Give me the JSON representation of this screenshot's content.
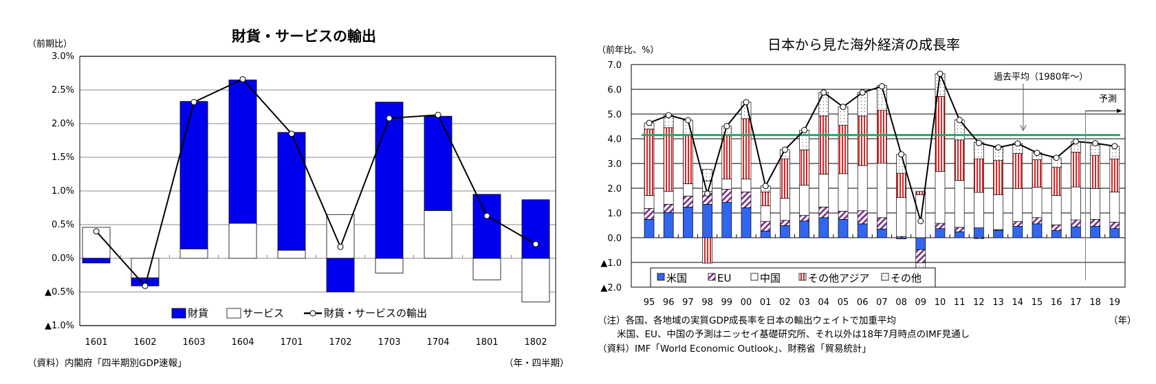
{
  "chart_data": [
    {
      "type": "bar",
      "stacked": true,
      "title": "財貨・サービスの輸出",
      "ylabel": "（前期比）",
      "xlabel": "（年・四半期）",
      "source": "（資料）内閣府「四半期別GDP速報」",
      "ylim": [
        -1.0,
        3.0
      ],
      "yticks": [
        3.0,
        2.5,
        2.0,
        1.5,
        1.0,
        0.5,
        0.0,
        -0.5,
        -1.0
      ],
      "ytick_labels": [
        "3.0%",
        "2.5%",
        "2.0%",
        "1.5%",
        "1.0%",
        "0.5%",
        "0.0%",
        "▲0.5%",
        "▲1.0%"
      ],
      "grid": true,
      "legend_position": "bottom-inside",
      "categories": [
        "1601",
        "1602",
        "1603",
        "1604",
        "1701",
        "1702",
        "1703",
        "1704",
        "1801",
        "1802"
      ],
      "series": [
        {
          "name": "財貨",
          "kind": "bar",
          "color": "#0000ee",
          "values": [
            -0.07,
            -0.12,
            2.19,
            2.13,
            1.75,
            -0.5,
            2.32,
            1.4,
            0.95,
            0.87
          ]
        },
        {
          "name": "サービス",
          "kind": "bar",
          "color": "#ffffff",
          "values": [
            0.46,
            -0.29,
            0.14,
            0.52,
            0.12,
            0.65,
            -0.22,
            0.71,
            -0.32,
            -0.65
          ]
        },
        {
          "name": "財貨・サービスの輸出",
          "kind": "line",
          "color": "#000000",
          "values": [
            0.4,
            -0.41,
            2.32,
            2.66,
            1.85,
            0.17,
            2.08,
            2.13,
            0.63,
            0.21
          ]
        }
      ]
    },
    {
      "type": "bar",
      "stacked": true,
      "title": "日本から見た海外経済の成長率",
      "ylabel": "（前年比、%）",
      "xlabel": "（年）",
      "ylim": [
        -2.0,
        7.0
      ],
      "yticks": [
        7,
        6,
        5,
        4,
        3,
        2,
        1,
        0,
        -1,
        -2
      ],
      "ytick_labels": [
        "7.0",
        "6.0",
        "5.0",
        "4.0",
        "3.0",
        "2.0",
        "1.0",
        "0.0",
        "▲1.0",
        "▲2.0"
      ],
      "grid": true,
      "legend_position": "bottom-inside",
      "categories": [
        "95",
        "96",
        "97",
        "98",
        "99",
        "00",
        "01",
        "02",
        "03",
        "04",
        "05",
        "06",
        "07",
        "08",
        "09",
        "10",
        "11",
        "12",
        "13",
        "14",
        "15",
        "16",
        "17",
        "18",
        "19"
      ],
      "series": [
        {
          "name": "米国",
          "pattern": "solid",
          "color": "#3366ee",
          "values": [
            0.74,
            1.02,
            1.24,
            1.35,
            1.43,
            1.21,
            0.27,
            0.49,
            0.67,
            0.81,
            0.74,
            0.56,
            0.35,
            -0.05,
            -0.48,
            0.37,
            0.24,
            0.4,
            0.3,
            0.46,
            0.56,
            0.29,
            0.44,
            0.46,
            0.37
          ]
        },
        {
          "name": "EU",
          "pattern": "diagonal-hatch",
          "color": "#7a2a8a",
          "values": [
            0.44,
            0.33,
            0.44,
            0.52,
            0.53,
            0.64,
            0.39,
            0.21,
            0.23,
            0.43,
            0.33,
            0.53,
            0.46,
            0.05,
            -0.54,
            0.21,
            0.18,
            -0.04,
            0.03,
            0.19,
            0.25,
            0.23,
            0.28,
            0.28,
            0.26
          ]
        },
        {
          "name": "中国",
          "pattern": "white",
          "color": "#ffffff",
          "values": [
            0.53,
            0.52,
            0.5,
            0.42,
            0.41,
            0.52,
            0.63,
            0.89,
            1.22,
            1.33,
            1.52,
            1.83,
            2.2,
            1.57,
            1.74,
            2.1,
            1.9,
            1.43,
            1.41,
            1.34,
            1.23,
            1.19,
            1.33,
            1.25,
            1.22
          ]
        },
        {
          "name": "その他アジア",
          "pattern": "vertical-stripes",
          "color": "#dd2222",
          "values": [
            2.68,
            2.58,
            2.0,
            -1.03,
            1.75,
            2.44,
            0.56,
            1.6,
            1.43,
            2.35,
            1.96,
            2.0,
            2.14,
            0.99,
            0.13,
            3.03,
            1.63,
            1.36,
            1.38,
            1.41,
            1.11,
            1.13,
            1.41,
            1.34,
            1.33
          ]
        },
        {
          "name": "その他",
          "pattern": "dots",
          "color": "#ffffff",
          "values": [
            0.25,
            0.5,
            0.57,
            0.48,
            0.39,
            0.67,
            0.24,
            0.37,
            0.8,
            0.95,
            0.74,
            0.95,
            1.0,
            0.76,
            -0.2,
            0.92,
            0.81,
            0.67,
            0.53,
            0.41,
            0.28,
            0.39,
            0.43,
            0.42,
            0.52
          ]
        },
        {
          "name": "",
          "kind": "line",
          "color": "#000000",
          "values": [
            4.64,
            4.95,
            4.75,
            1.78,
            4.51,
            5.48,
            2.09,
            3.56,
            4.35,
            5.87,
            5.29,
            5.87,
            6.12,
            3.37,
            0.67,
            6.63,
            4.76,
            3.83,
            3.65,
            3.81,
            3.43,
            3.23,
            3.89,
            3.82,
            3.7
          ]
        }
      ],
      "reference_line": {
        "label": "過去平均（1980年～）",
        "value": 4.15,
        "color": "#22aa66"
      },
      "forecast_marker": {
        "label": "予測",
        "from_category": "18"
      },
      "notes": [
        "（注）各国、各地域の実質GDP成長率を日本の輸出ウェイトで加重平均",
        "米国、EU、中国の予測はニッセイ基礎研究所、それ以外は18年7月時点のIMF見通し",
        "（資料）IMF「World Economic Outlook」、財務省「貿易統計」"
      ]
    }
  ]
}
